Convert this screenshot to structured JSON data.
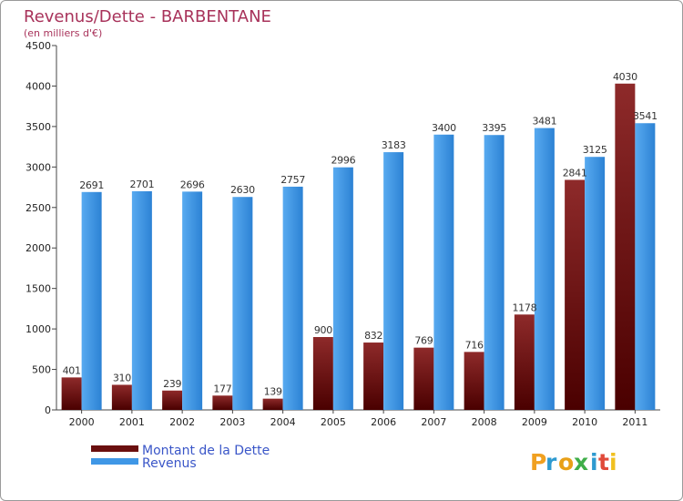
{
  "chart_data": {
    "type": "bar",
    "title": "Revenus/Dette - BARBENTANE",
    "subtitle": "(en milliers d'€)",
    "categories": [
      "2000",
      "2001",
      "2002",
      "2003",
      "2004",
      "2005",
      "2006",
      "2007",
      "2008",
      "2009",
      "2010",
      "2011"
    ],
    "series": [
      {
        "name": "Montant de la Dette",
        "color": "#7a1616",
        "values": [
          401,
          310,
          239,
          177,
          139,
          900,
          832,
          769,
          716,
          1178,
          2841,
          4030
        ],
        "labels": [
          "401",
          "310",
          "239",
          "177",
          "139",
          "900",
          "832",
          "769",
          "716",
          "1178",
          "2841",
          "4030"
        ]
      },
      {
        "name": "Revenus",
        "color": "#3f97e6",
        "values": [
          2691,
          2701,
          2696,
          2630,
          2757,
          2996,
          3183,
          3400,
          3395,
          3481,
          3125,
          3541
        ],
        "labels": [
          "2691",
          "2701",
          "2696",
          "2630",
          "2757",
          "2996",
          "3183",
          "3400",
          "3395",
          "3481",
          "3125",
          "3541"
        ]
      }
    ],
    "ylim": [
      0,
      4500
    ],
    "yticks": [
      0,
      500,
      1000,
      1500,
      2000,
      2500,
      3000,
      3500,
      4000,
      4500
    ],
    "legend_position": "bottom-left",
    "grid": false
  },
  "branding": {
    "logo_text": "Proxiti",
    "logo_colors": [
      "#f0a020",
      "#2e9ad0",
      "#e8a018",
      "#3fae49",
      "#2e9ad0",
      "#e04a3a",
      "#f0c020"
    ]
  }
}
